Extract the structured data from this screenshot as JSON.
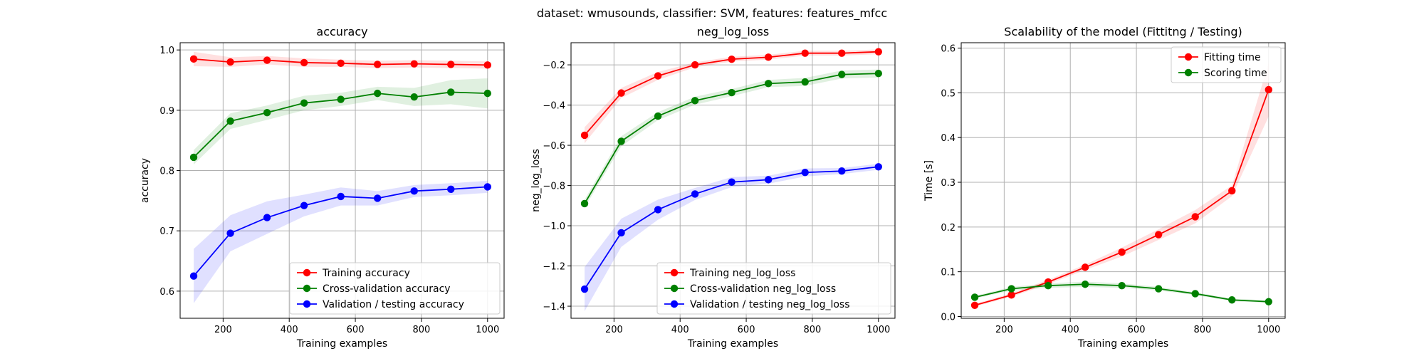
{
  "suptitle": "dataset: wmusounds, classifier: SVM, features: features_mfcc",
  "chart_data": [
    {
      "type": "line",
      "title": "accuracy",
      "xlabel": "Training examples",
      "ylabel": "accuracy",
      "xlim": [
        70,
        1050
      ],
      "ylim": [
        0.555,
        1.012
      ],
      "xticks": [
        200,
        400,
        600,
        800,
        1000
      ],
      "yticks": [
        0.6,
        0.7,
        0.8,
        0.9,
        1.0
      ],
      "ytick_labels": [
        "0.6",
        "0.7",
        "0.8",
        "0.9",
        "1.0"
      ],
      "grid": true,
      "legend_position": "lower-right",
      "x": [
        111,
        222,
        333,
        445,
        556,
        667,
        778,
        889,
        1000
      ],
      "series": [
        {
          "name": "Training accuracy",
          "color": "#ff0000",
          "values": [
            0.985,
            0.98,
            0.983,
            0.979,
            0.978,
            0.976,
            0.977,
            0.976,
            0.975
          ],
          "band": [
            0.012,
            0.008,
            0.007,
            0.007,
            0.006,
            0.006,
            0.006,
            0.006,
            0.006
          ]
        },
        {
          "name": "Cross-validation accuracy",
          "color": "#008000",
          "values": [
            0.822,
            0.882,
            0.896,
            0.912,
            0.918,
            0.928,
            0.922,
            0.93,
            0.928
          ],
          "band": [
            0.012,
            0.013,
            0.012,
            0.012,
            0.011,
            0.011,
            0.015,
            0.02,
            0.025
          ]
        },
        {
          "name": "Validation / testing accuracy",
          "color": "#0000ff",
          "values": [
            0.625,
            0.696,
            0.722,
            0.742,
            0.757,
            0.754,
            0.766,
            0.769,
            0.773
          ],
          "band": [
            0.045,
            0.03,
            0.027,
            0.018,
            0.015,
            0.012,
            0.01,
            0.01,
            0.01
          ]
        }
      ]
    },
    {
      "type": "line",
      "title": "neg_log_loss",
      "xlabel": "Training examples",
      "ylabel": "neg_log_loss",
      "xlim": [
        70,
        1050
      ],
      "ylim": [
        -1.46,
        -0.09
      ],
      "xticks": [
        200,
        400,
        600,
        800,
        1000
      ],
      "yticks": [
        -1.4,
        -1.2,
        -1.0,
        -0.8,
        -0.6,
        -0.4,
        -0.2
      ],
      "ytick_labels": [
        "−1.4",
        "−1.2",
        "−1.0",
        "−0.8",
        "−0.6",
        "−0.4",
        "−0.2"
      ],
      "grid": true,
      "legend_position": "lower-right",
      "x": [
        111,
        222,
        333,
        445,
        556,
        667,
        778,
        889,
        1000
      ],
      "series": [
        {
          "name": "Training neg_log_loss",
          "color": "#ff0000",
          "values": [
            -0.55,
            -0.34,
            -0.255,
            -0.2,
            -0.172,
            -0.162,
            -0.142,
            -0.142,
            -0.135
          ],
          "band": [
            0.04,
            0.025,
            0.02,
            0.012,
            0.012,
            0.012,
            0.012,
            0.012,
            0.012
          ]
        },
        {
          "name": "Cross-validation neg_log_loss",
          "color": "#008000",
          "values": [
            -0.89,
            -0.58,
            -0.455,
            -0.378,
            -0.338,
            -0.293,
            -0.285,
            -0.248,
            -0.243
          ],
          "band": [
            0.02,
            0.025,
            0.02,
            0.02,
            0.018,
            0.018,
            0.02,
            0.02,
            0.02
          ]
        },
        {
          "name": "Validation / testing neg_log_loss",
          "color": "#0000ff",
          "values": [
            -1.315,
            -1.035,
            -0.92,
            -0.842,
            -0.783,
            -0.771,
            -0.735,
            -0.728,
            -0.707
          ],
          "band": [
            0.11,
            0.07,
            0.05,
            0.03,
            0.025,
            0.02,
            0.02,
            0.015,
            0.015
          ]
        }
      ]
    },
    {
      "type": "line",
      "title": "Scalability of the model (Fittitng / Testing)",
      "xlabel": "Training examples",
      "ylabel": "Time [s]",
      "xlim": [
        70,
        1050
      ],
      "ylim": [
        -0.004,
        0.612
      ],
      "xticks": [
        200,
        400,
        600,
        800,
        1000
      ],
      "yticks": [
        0.0,
        0.1,
        0.2,
        0.3,
        0.4,
        0.5,
        0.6
      ],
      "ytick_labels": [
        "0.0",
        "0.1",
        "0.2",
        "0.3",
        "0.4",
        "0.5",
        "0.6"
      ],
      "grid": true,
      "legend_position": "upper-right",
      "x": [
        111,
        222,
        333,
        445,
        556,
        667,
        778,
        889,
        1000
      ],
      "series": [
        {
          "name": "Fitting time",
          "color": "#ff0000",
          "values": [
            0.025,
            0.048,
            0.077,
            0.11,
            0.144,
            0.183,
            0.223,
            0.281,
            0.507
          ],
          "band": [
            0.003,
            0.004,
            0.005,
            0.006,
            0.01,
            0.012,
            0.015,
            0.012,
            0.06
          ]
        },
        {
          "name": "Scoring time",
          "color": "#008000",
          "values": [
            0.043,
            0.062,
            0.069,
            0.072,
            0.069,
            0.062,
            0.051,
            0.037,
            0.033
          ],
          "band": [
            0.003,
            0.004,
            0.005,
            0.006,
            0.005,
            0.004,
            0.003,
            0.003,
            0.003
          ]
        }
      ]
    }
  ]
}
